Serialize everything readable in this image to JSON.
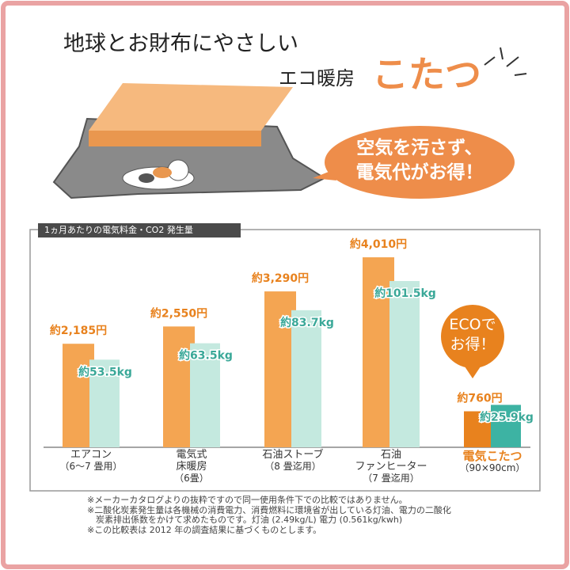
{
  "header": {
    "title_line1": "地球とお財布にやさしい",
    "title_line2": "エコ暖房",
    "title_emphasis": "こたつ"
  },
  "speech_bubble": "空気を汚さず、\n電気代がお得！",
  "chart_data": {
    "type": "bar",
    "title": "1ヵ月あたりの電気料金・CO2 発生量",
    "categories": [
      "エアコン",
      "電気式\n床暖房",
      "石油ストーブ",
      "石油\nファンヒーター",
      "電気こたつ"
    ],
    "category_notes": [
      "（6～7 畳用）",
      "（6畳）",
      "（8 畳迄用）",
      "（7 畳迄用）",
      "（90×90cm）"
    ],
    "category_label_colors": [
      "#333333",
      "#333333",
      "#333333",
      "#333333",
      "#e8821e"
    ],
    "series": [
      {
        "values": [
          2185,
          2550,
          3290,
          4010,
          760
        ],
        "value_labels": [
          "約2,185円",
          "約2,550円",
          "約3,290円",
          "約4,010円",
          "約760円"
        ],
        "colors": [
          "#f4a552",
          "#f4a552",
          "#f4a552",
          "#f4a552",
          "#e8821e"
        ]
      },
      {
        "values": [
          53.5,
          63.5,
          83.7,
          101.5,
          25.9
        ],
        "value_labels": [
          "約53.5kg",
          "約63.5kg",
          "約83.7kg",
          "約101.5kg",
          "約25.9kg"
        ],
        "colors": [
          "#c4e9df",
          "#c4e9df",
          "#c4e9df",
          "#c4e9df",
          "#3db3a3"
        ]
      }
    ]
  },
  "callout": "ECOで\nお得！",
  "notes": [
    "※メーカーカタログよりの抜粋ですので同一使用条件下での比較ではありません。",
    "※二酸化炭素発生量は各機械の消費電力、消費燃料に環境省が出している灯油、電力の二酸化\n　炭素排出係数をかけて求めたものです。灯油 (2.49kg/L) 電力 (0.561kg/kwh)",
    "※この比較表は 2012 年の調査結果に基づくものとします。"
  ]
}
